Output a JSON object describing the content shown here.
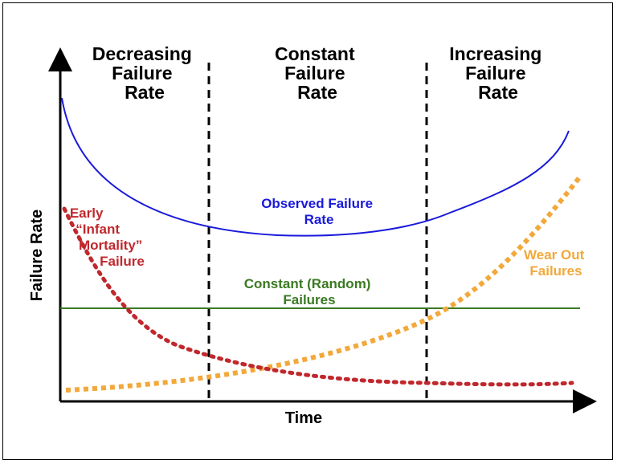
{
  "title_phases": {
    "decreasing": [
      "Decreasing",
      "Failure",
      "Rate"
    ],
    "constant": [
      "Constant",
      "Failure",
      "Rate"
    ],
    "increasing": [
      "Increasing",
      "Failure",
      "Rate"
    ]
  },
  "axes": {
    "x_label": "Time",
    "y_label": "Failure Rate"
  },
  "curves": {
    "observed": {
      "label": [
        "Observed Failure",
        "Rate"
      ],
      "color": "#1a1adb"
    },
    "infant": {
      "label": [
        "Early",
        "“Infant",
        "Mortality”",
        "Failure"
      ],
      "color": "#c0282d"
    },
    "constant": {
      "label": [
        "Constant (Random)",
        "Failures"
      ],
      "color": "#3a7a22"
    },
    "wearout": {
      "label": [
        "Wear Out",
        "Failures"
      ],
      "color": "#f2a83b"
    }
  }
}
